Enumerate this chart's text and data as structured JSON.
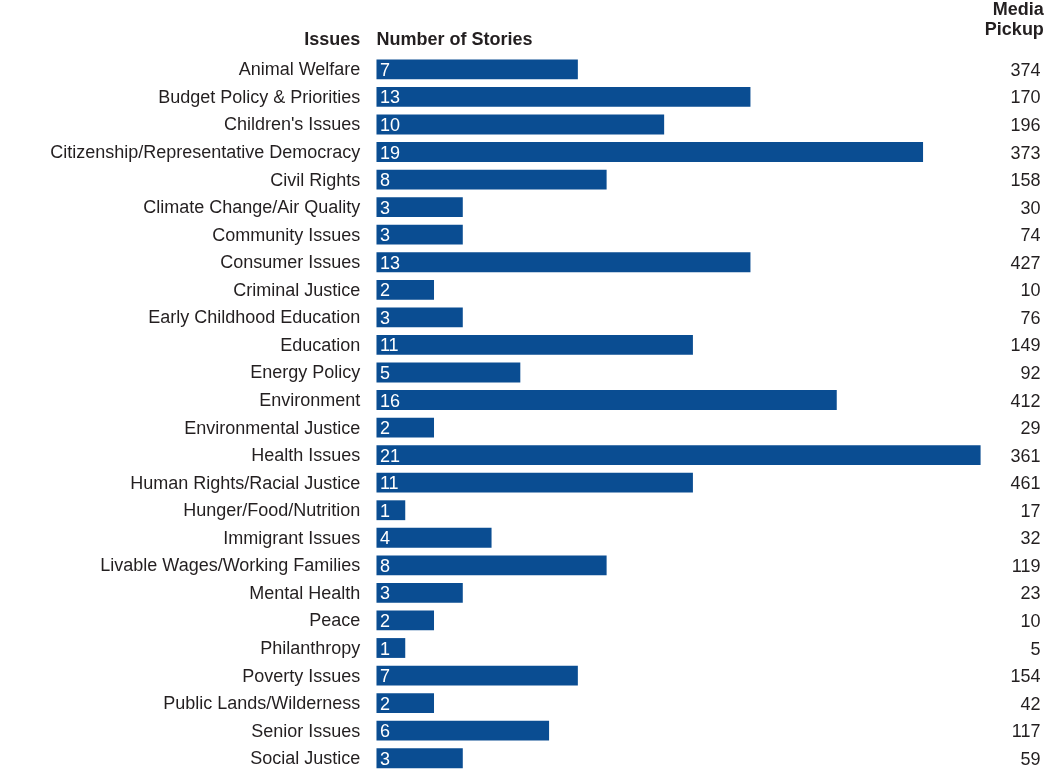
{
  "chart_data": {
    "type": "bar",
    "orientation": "horizontal",
    "ylabel": "Issues",
    "data_labels": true,
    "grid": false,
    "legend": false,
    "categories": [
      "Animal Welfare",
      "Budget Policy & Priorities",
      "Children's Issues",
      "Citizenship/Representative Democracy",
      "Civil Rights",
      "Climate Change/Air Quality",
      "Community Issues",
      "Consumer Issues",
      "Criminal Justice",
      "Early Childhood Education",
      "Education",
      "Energy Policy",
      "Environment",
      "Environmental Justice",
      "Health Issues",
      "Human Rights/Racial Justice",
      "Hunger/Food/Nutrition",
      "Immigrant Issues",
      "Livable Wages/Working Families",
      "Mental Health",
      "Peace",
      "Philanthropy",
      "Poverty Issues",
      "Public Lands/Wilderness",
      "Senior Issues",
      "Social Justice"
    ],
    "series": [
      {
        "name": "Number of Stories",
        "color": "#0a4d92",
        "values": [
          7,
          13,
          10,
          19,
          8,
          3,
          3,
          13,
          2,
          3,
          11,
          5,
          16,
          2,
          21,
          11,
          1,
          4,
          8,
          3,
          2,
          1,
          7,
          2,
          6,
          3
        ]
      }
    ],
    "annotations": [
      "Media Pickup",
      "374",
      "170",
      "196",
      "373",
      "158",
      "30",
      "74",
      "427",
      "10",
      "76",
      "149",
      "92",
      "412",
      "29",
      "361",
      "461",
      "17",
      "32",
      "119",
      "23",
      "10",
      "5",
      "154",
      "42",
      "117",
      "59"
    ]
  }
}
